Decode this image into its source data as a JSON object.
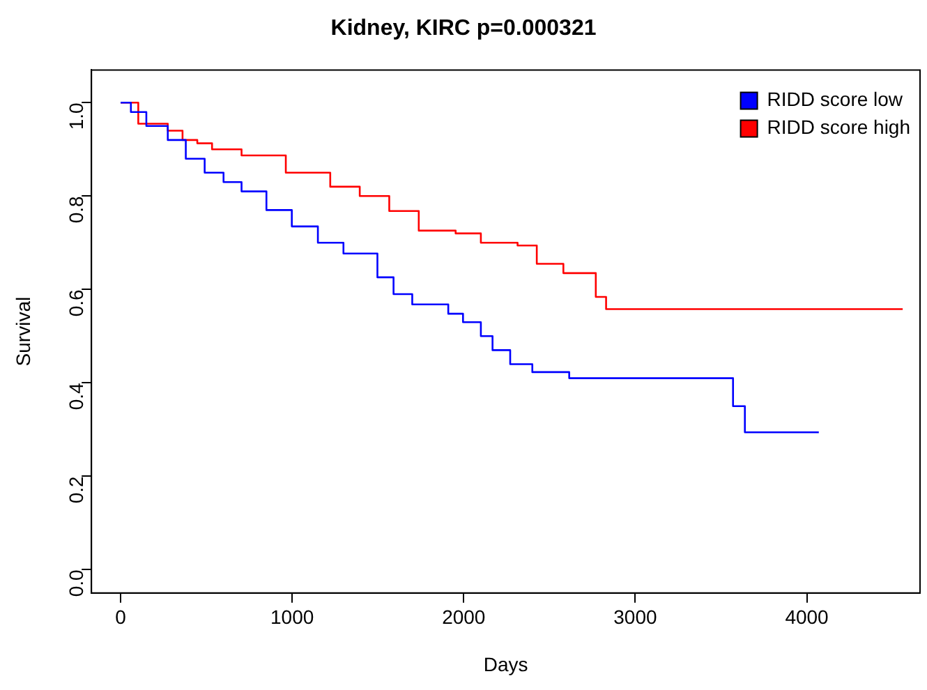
{
  "chart_data": {
    "type": "step",
    "title": "Kidney, KIRC p=0.000321",
    "xlabel": "Days",
    "ylabel": "Survival",
    "xlim": [
      -170,
      4660
    ],
    "xticks": [
      0,
      1000,
      2000,
      3000,
      4000
    ],
    "ylim": [
      -0.05,
      1.07
    ],
    "yticks": [
      {
        "value": 0,
        "label": "0.0"
      },
      {
        "value": 0.2,
        "label": "0.2"
      },
      {
        "value": 0.4,
        "label": "0.4"
      },
      {
        "value": 0.6,
        "label": "0.6"
      },
      {
        "value": 0.8,
        "label": "0.8"
      },
      {
        "value": 1,
        "label": "1.0"
      }
    ],
    "grid": false,
    "legend": "top right",
    "marker": "none",
    "line_style": "solid",
    "series": [
      {
        "name": "RIDD score low",
        "color": "#0000ff",
        "x": [
          0,
          60,
          150,
          275,
          380,
          490,
          600,
          705,
          850,
          998,
          1150,
          1299,
          1497,
          1591,
          1700,
          1910,
          1996,
          2100,
          2168,
          2271,
          2400,
          2615,
          3570,
          3639,
          4070
        ],
        "values": [
          1.0,
          0.98,
          0.95,
          0.92,
          0.88,
          0.85,
          0.83,
          0.81,
          0.77,
          0.735,
          0.7,
          0.677,
          0.626,
          0.59,
          0.568,
          0.548,
          0.53,
          0.5,
          0.47,
          0.44,
          0.423,
          0.41,
          0.35,
          0.294,
          0.294
        ]
      },
      {
        "name": "RIDD score high",
        "color": "#ff0000",
        "x": [
          0,
          103,
          275,
          361,
          447,
          533,
          705,
          963,
          1222,
          1394,
          1566,
          1738,
          1953,
          2100,
          2314,
          2426,
          2581,
          2770,
          2830,
          4559
        ],
        "values": [
          1.0,
          0.955,
          0.94,
          0.92,
          0.913,
          0.9,
          0.887,
          0.85,
          0.82,
          0.8,
          0.768,
          0.726,
          0.72,
          0.7,
          0.694,
          0.655,
          0.635,
          0.584,
          0.558,
          0.558
        ]
      }
    ]
  }
}
